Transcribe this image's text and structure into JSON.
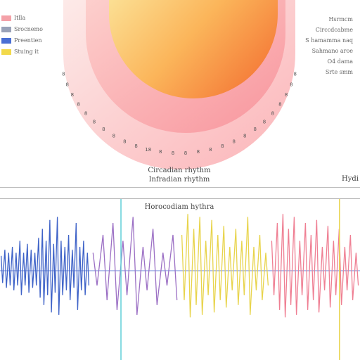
{
  "chart_data": [
    {
      "type": "radial",
      "title": [
        "Circadian rhythm",
        "Infradian rhythm"
      ],
      "legend": [
        {
          "label": "Itlla",
          "color": "#f4a1a8"
        },
        {
          "label": "Srocnemo",
          "color": "#9aa2b8"
        },
        {
          "label": "Preentien",
          "color": "#4a6fd4"
        },
        {
          "label": "Stuing   it",
          "color": "#f2d94a"
        }
      ],
      "notes": [
        "Hsrmcm",
        "Circcdcabme",
        "S hamamma naq",
        "Sahmano aroe",
        "O4 dama",
        "Srte  smm"
      ],
      "corner_label": "Hydi",
      "layers": [
        {
          "name": "outer",
          "colors": [
            "#fdecea",
            "#fbb4b8"
          ]
        },
        {
          "name": "middle",
          "colors": [
            "#fdd2cf",
            "#f8949c"
          ]
        },
        {
          "name": "inner",
          "colors": [
            "#fbe49a",
            "#f57e3a"
          ]
        }
      ],
      "tick_labels": [
        "8",
        "8",
        "8",
        "8",
        "8",
        "8",
        "8",
        "8",
        "8",
        "8",
        "18",
        "8",
        "8",
        "8",
        "8",
        "8",
        "8",
        "8",
        "8",
        "8",
        "8",
        "8",
        "8",
        "8",
        "8",
        "8"
      ]
    },
    {
      "type": "line",
      "title": "Horocodiam hythra",
      "series": [
        {
          "color": "#3f63c8",
          "values": [
            0.25,
            0.35,
            0.3,
            0.4,
            0.3,
            0.5,
            0.3,
            0.45,
            0.35,
            0.3,
            0.55,
            0.7,
            0.5,
            0.85,
            0.45,
            0.9,
            0.5,
            0.4,
            0.6,
            0.35,
            0.8,
            0.4,
            0.5,
            0.3
          ]
        },
        {
          "color": "#9b6fc4",
          "values": [
            0.3,
            0.6,
            0.8,
            0.5,
            0.9,
            0.4,
            0.7,
            0.3,
            0.6
          ]
        },
        {
          "color": "#e8d44c",
          "values": [
            0.6,
            0.95,
            0.7,
            0.9,
            0.5,
            0.85,
            0.6,
            0.75,
            0.4,
            0.7,
            0.5,
            0.9,
            0.4,
            0.6,
            0.3
          ]
        },
        {
          "color": "#ef7f93",
          "values": [
            0.5,
            0.8,
            0.95,
            0.7,
            0.9,
            0.5,
            0.8,
            0.6,
            0.85,
            0.4,
            0.75,
            0.5,
            0.7,
            0.4,
            0.6,
            0.3
          ]
        }
      ],
      "verticals": [
        {
          "color": "#5fcfd8",
          "position": 0.336
        },
        {
          "color": "#e8d44c",
          "position": 0.943
        }
      ]
    }
  ]
}
